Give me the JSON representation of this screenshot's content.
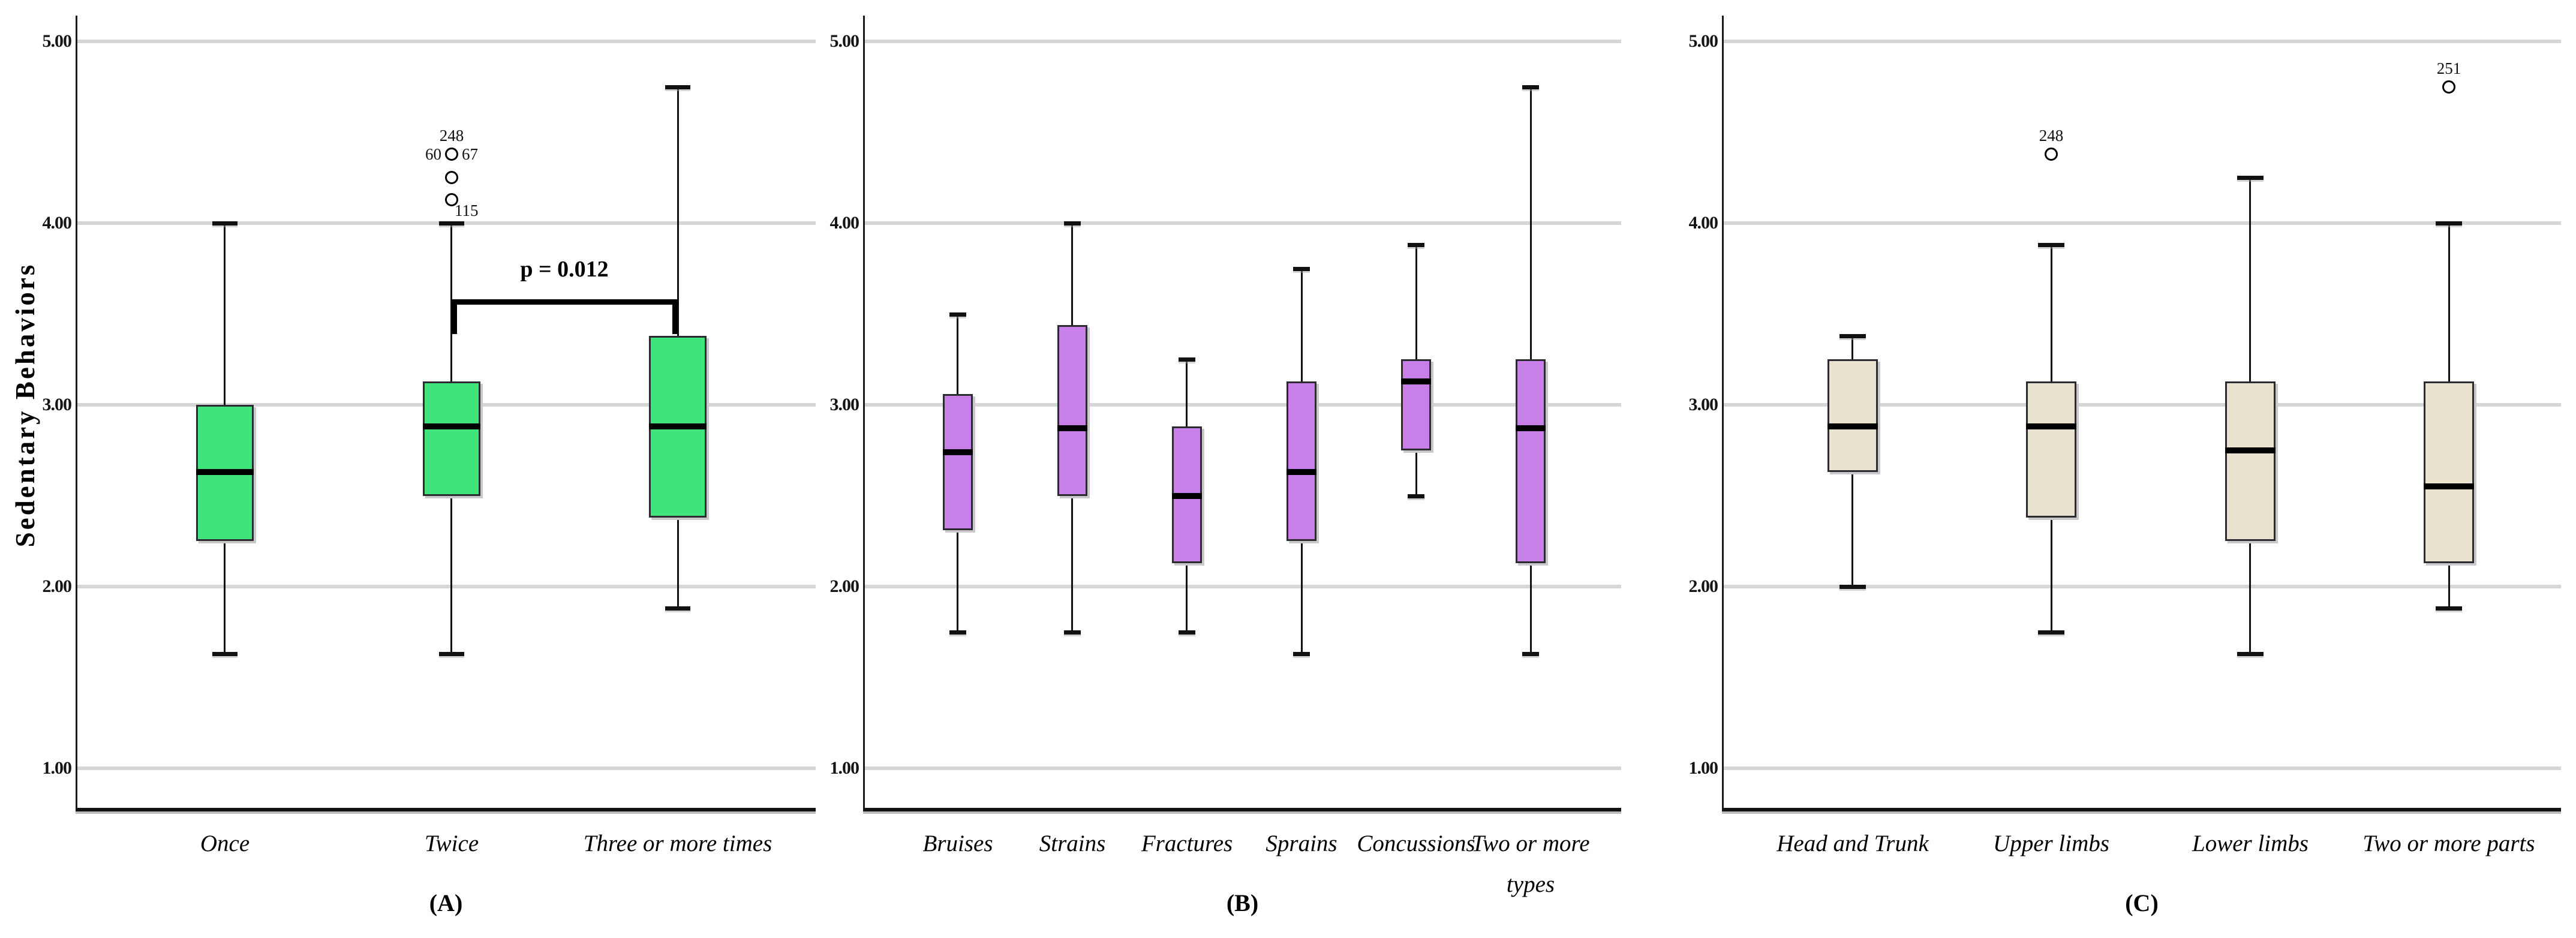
{
  "chart_data": {
    "type": "box",
    "title": "",
    "ylabel": "Sedentary Behaviors",
    "ylim": [
      0.55,
      5.2
    ],
    "grid": "horizontal",
    "yticks": [
      {
        "label": "5.00",
        "value": 5.0
      },
      {
        "label": "4.00",
        "value": 4.0
      },
      {
        "label": "3.00",
        "value": 3.0
      },
      {
        "label": "2.00",
        "value": 2.0
      },
      {
        "label": "1.00",
        "value": 1.0
      }
    ],
    "panels": [
      {
        "letter": "(A)",
        "box_color": "#3FE47C",
        "categories": [
          {
            "label": [
              "Once"
            ],
            "min": 1.63,
            "q1": 2.25,
            "median": 2.63,
            "q3": 3.0,
            "max": 4.0
          },
          {
            "label": [
              "Twice"
            ],
            "min": 1.63,
            "q1": 2.5,
            "median": 2.88,
            "q3": 3.13,
            "max": 4.0,
            "max_label": "115",
            "outliers": [
              {
                "value": 4.38,
                "labels": {
                  "above": "248",
                  "left": "60",
                  "right": "67"
                }
              },
              {
                "value": 4.25,
                "labels": {}
              },
              {
                "value": 4.13,
                "labels": {}
              }
            ]
          },
          {
            "label": [
              "Three or more times"
            ],
            "min": 1.88,
            "q1": 2.38,
            "median": 2.88,
            "q3": 3.38,
            "max": 4.75
          }
        ],
        "annotation": {
          "text": "p = 0.012",
          "between": [
            1,
            2
          ],
          "bar_value": 3.58
        }
      },
      {
        "letter": "(B)",
        "box_color": "#C87FE8",
        "categories": [
          {
            "label": [
              "Bruises"
            ],
            "min": 1.75,
            "q1": 2.31,
            "median": 2.74,
            "q3": 3.06,
            "max": 3.5
          },
          {
            "label": [
              "Strains"
            ],
            "min": 1.75,
            "q1": 2.5,
            "median": 2.87,
            "q3": 3.44,
            "max": 4.0
          },
          {
            "label": [
              "Fractures"
            ],
            "min": 1.75,
            "q1": 2.13,
            "median": 2.5,
            "q3": 2.88,
            "max": 3.25
          },
          {
            "label": [
              "Sprains"
            ],
            "min": 1.63,
            "q1": 2.25,
            "median": 2.63,
            "q3": 3.13,
            "max": 3.75
          },
          {
            "label": [
              "Concussions"
            ],
            "min": 2.5,
            "q1": 2.75,
            "median": 3.13,
            "q3": 3.25,
            "max": 3.88
          },
          {
            "label": [
              "Two or more",
              "types"
            ],
            "min": 1.63,
            "q1": 2.13,
            "median": 2.87,
            "q3": 3.25,
            "max": 4.75
          }
        ]
      },
      {
        "letter": "(C)",
        "box_color": "#E8E2CF",
        "categories": [
          {
            "label": [
              "Head and Trunk"
            ],
            "min": 2.0,
            "q1": 2.63,
            "median": 2.88,
            "q3": 3.25,
            "max": 3.38
          },
          {
            "label": [
              "Upper limbs"
            ],
            "min": 1.75,
            "q1": 2.38,
            "median": 2.88,
            "q3": 3.13,
            "max": 3.88,
            "outliers": [
              {
                "value": 4.38,
                "labels": {
                  "above": "248"
                }
              }
            ]
          },
          {
            "label": [
              "Lower limbs"
            ],
            "min": 1.63,
            "q1": 2.25,
            "median": 2.75,
            "q3": 3.13,
            "max": 4.25
          },
          {
            "label": [
              "Two or more parts"
            ],
            "min": 1.88,
            "q1": 2.13,
            "median": 2.55,
            "q3": 3.13,
            "max": 4.0,
            "outliers": [
              {
                "value": 4.75,
                "labels": {
                  "above": "251"
                }
              }
            ]
          }
        ]
      }
    ]
  }
}
